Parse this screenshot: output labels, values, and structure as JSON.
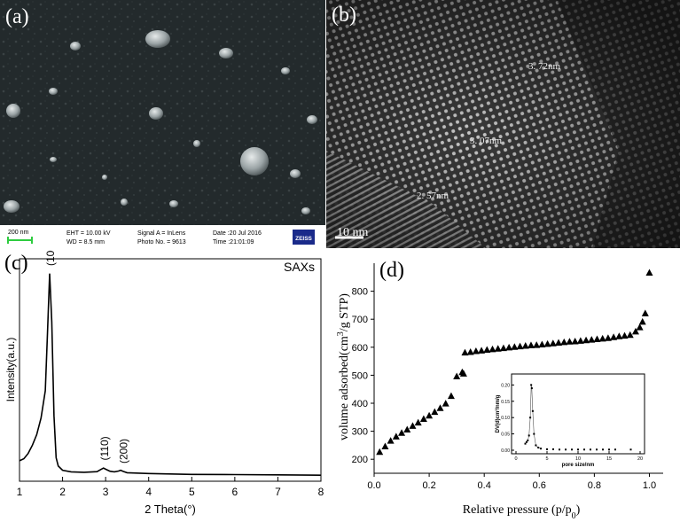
{
  "panels": {
    "a": {
      "letter": "(a)",
      "scale_text": "200 nm",
      "info": {
        "eht": "EHT = 10.00 kV",
        "wd": "WD = 8.5 mm",
        "signal": "Signal A = InLens",
        "photo": "Photo No. = 9613",
        "date": "Date :20 Jul 2016",
        "time": "Time :21:01:09",
        "logo": "ZEISS"
      }
    },
    "b": {
      "letter": "(b)",
      "labels": [
        "3. 72nm",
        "3. 07nm",
        "2. 57nm"
      ],
      "scale_text": "10 nm"
    },
    "c": {
      "letter": "(c)",
      "title": "SAXs",
      "peaks": [
        "(100)",
        "(110)",
        "(200)"
      ]
    },
    "d": {
      "letter": "(d)",
      "inset": {
        "xlabel": "pore size/nm",
        "ylabel": "DV(d)cm³/nm/g"
      }
    }
  },
  "chart_data": [
    {
      "type": "line",
      "title": "SAXs",
      "xlabel": "2 Theta(°)",
      "ylabel": "Intensity(a.u.)",
      "xlim": [
        1,
        8
      ],
      "xticks": [
        1,
        2,
        3,
        4,
        5,
        6,
        7,
        8
      ],
      "y_ticks_shown": false,
      "x": [
        1.0,
        1.1,
        1.2,
        1.3,
        1.4,
        1.5,
        1.6,
        1.65,
        1.7,
        1.75,
        1.8,
        1.85,
        1.9,
        2.0,
        2.2,
        2.5,
        2.8,
        2.9,
        2.95,
        3.0,
        3.1,
        3.2,
        3.3,
        3.35,
        3.4,
        3.5,
        4.0,
        5.0,
        6.0,
        7.0,
        8.0
      ],
      "y": [
        0.085,
        0.095,
        0.12,
        0.16,
        0.21,
        0.29,
        0.42,
        0.7,
        0.98,
        0.75,
        0.3,
        0.1,
        0.06,
        0.04,
        0.032,
        0.03,
        0.033,
        0.045,
        0.05,
        0.045,
        0.035,
        0.032,
        0.036,
        0.04,
        0.035,
        0.028,
        0.024,
        0.02,
        0.019,
        0.018,
        0.016
      ],
      "annotations": [
        {
          "text": "(100)",
          "x": 1.72,
          "y": 1.0
        },
        {
          "text": "(110)",
          "x": 2.98,
          "y": 0.07
        },
        {
          "text": "(200)",
          "x": 3.42,
          "y": 0.055
        }
      ]
    },
    {
      "type": "scatter",
      "xlabel": "Relative pressure (p/p0)",
      "ylabel": "volume adsorbed(cm3/g STP)",
      "xlim": [
        0,
        1.05
      ],
      "ylim": [
        150,
        900
      ],
      "xticks": [
        0.0,
        0.2,
        0.4,
        0.6,
        0.8,
        1.0
      ],
      "yticks": [
        200,
        300,
        400,
        500,
        600,
        700,
        800
      ],
      "marker": "triangle",
      "x": [
        0.02,
        0.04,
        0.06,
        0.08,
        0.1,
        0.12,
        0.14,
        0.16,
        0.18,
        0.2,
        0.22,
        0.24,
        0.26,
        0.28,
        0.3,
        0.32,
        0.325,
        0.33,
        0.35,
        0.37,
        0.39,
        0.41,
        0.43,
        0.45,
        0.47,
        0.49,
        0.51,
        0.53,
        0.55,
        0.57,
        0.59,
        0.61,
        0.63,
        0.65,
        0.67,
        0.69,
        0.71,
        0.73,
        0.75,
        0.77,
        0.79,
        0.81,
        0.83,
        0.85,
        0.87,
        0.89,
        0.91,
        0.93,
        0.95,
        0.965,
        0.975,
        0.985,
        1.0
      ],
      "y": [
        225,
        245,
        265,
        280,
        293,
        305,
        318,
        330,
        343,
        355,
        368,
        382,
        398,
        425,
        495,
        510,
        505,
        580,
        582,
        585,
        587,
        590,
        592,
        594,
        596,
        598,
        600,
        602,
        604,
        606,
        607,
        609,
        611,
        613,
        615,
        617,
        619,
        620,
        622,
        624,
        626,
        628,
        630,
        632,
        635,
        638,
        640,
        643,
        655,
        670,
        690,
        720,
        865
      ]
    },
    {
      "type": "scatter",
      "xlabel": "pore size/nm",
      "ylabel": "DV(d)cm3/nm/g",
      "xlim": [
        0,
        20
      ],
      "ylim": [
        0,
        0.22
      ],
      "xticks": [
        0,
        5,
        10,
        15,
        20
      ],
      "yticks": [
        0.0,
        0.05,
        0.1,
        0.15,
        0.2
      ],
      "x": [
        1.5,
        1.7,
        1.9,
        2.1,
        2.3,
        2.45,
        2.55,
        2.7,
        2.9,
        3.2,
        3.6,
        4.0,
        5,
        6,
        7,
        8,
        9,
        10,
        11,
        12,
        13,
        14,
        15,
        16,
        18.5
      ],
      "y": [
        0.02,
        0.025,
        0.03,
        0.045,
        0.1,
        0.2,
        0.19,
        0.12,
        0.05,
        0.015,
        0.008,
        0.005,
        0.003,
        0.003,
        0.002,
        0.002,
        0.002,
        0.002,
        0.002,
        0.002,
        0.002,
        0.002,
        0.002,
        0.002,
        0.002
      ]
    }
  ]
}
